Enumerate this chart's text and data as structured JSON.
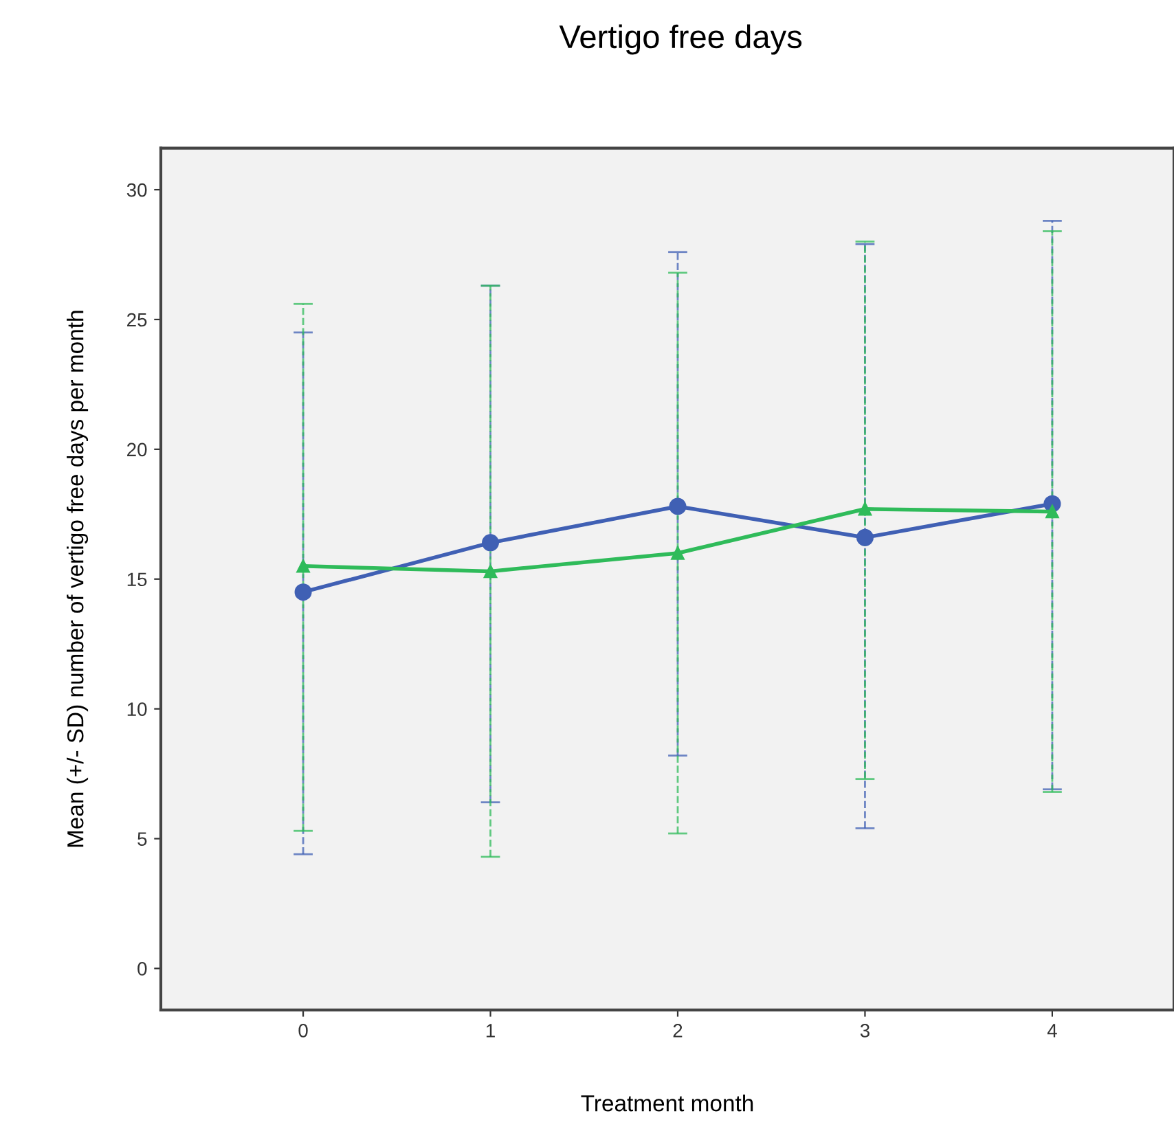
{
  "chart_data": {
    "type": "line",
    "title": "Vertigo free days",
    "xlabel": "Treatment month",
    "ylabel": "Mean (+/- SD) number of vertigo free days per month",
    "x": [
      0,
      1,
      2,
      3,
      4
    ],
    "series": [
      {
        "color": "#4060b4",
        "marker": "circle",
        "values": [
          14.5,
          16.4,
          17.8,
          16.6,
          17.9
        ],
        "errors": [
          [
            4.4,
            24.5
          ],
          [
            6.4,
            26.3
          ],
          [
            8.2,
            27.6
          ],
          [
            5.4,
            27.9
          ],
          [
            6.9,
            28.8
          ]
        ]
      },
      {
        "color": "#2fbb5a",
        "marker": "triangle",
        "values": [
          15.5,
          15.3,
          16.0,
          17.7,
          17.6
        ],
        "errors": [
          [
            5.3,
            25.6
          ],
          [
            4.3,
            26.3
          ],
          [
            5.2,
            26.8
          ],
          [
            7.3,
            28.0
          ],
          [
            6.8,
            28.4
          ]
        ]
      }
    ],
    "xlim": [
      -0.76,
      4.65
    ],
    "ylim": [
      -1.6,
      31.6
    ],
    "xticks": [
      0,
      1,
      2,
      3,
      4
    ],
    "yticks": [
      0,
      5,
      10,
      15,
      20,
      25,
      30
    ],
    "line_style": "solid",
    "grid": false,
    "legend": false
  }
}
